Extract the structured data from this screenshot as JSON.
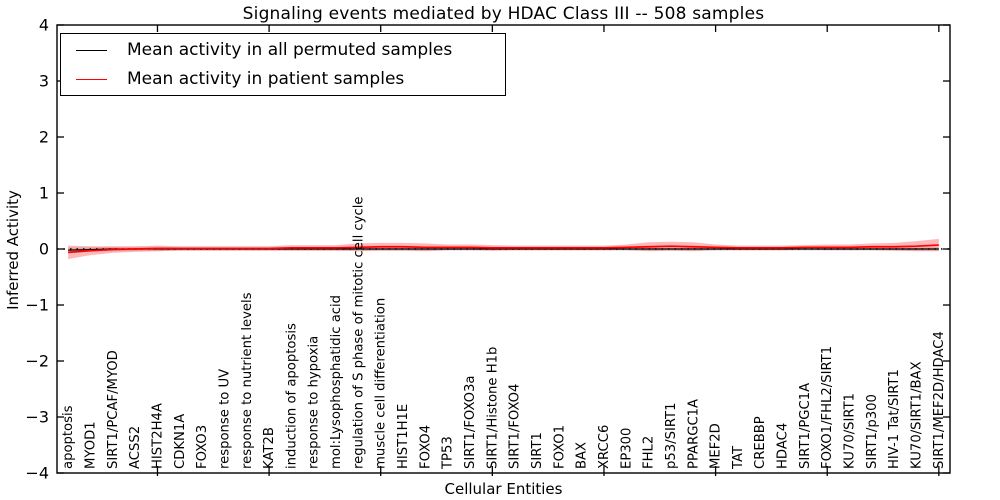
{
  "title": "Signaling events mediated by HDAC Class III -- 508 samples",
  "legend": {
    "items": [
      {
        "label": "Mean activity in all permuted samples",
        "color": "#000000"
      },
      {
        "label": "Mean activity in patient samples",
        "color": "#ff0000"
      }
    ]
  },
  "chart_data": {
    "type": "line",
    "title": "Signaling events mediated by HDAC Class III -- 508 samples",
    "xlabel": "Cellular Entities",
    "ylabel": "Inferred Activity",
    "ylim": [
      -4,
      4
    ],
    "ytick_values": [
      4,
      3,
      2,
      1,
      0,
      -1,
      -2,
      -3,
      -4
    ],
    "ytick_labels": [
      "4",
      "3",
      "2",
      "1",
      "0",
      "−1",
      "−2",
      "−3",
      "−4"
    ],
    "x_major_tick_indices": [
      4,
      9,
      14,
      19,
      24,
      29,
      34,
      39
    ],
    "zero_line": {
      "value": 0,
      "style": "dotted",
      "color": "#000000"
    },
    "grid": false,
    "legend_position": "upper left",
    "categories": [
      "apoptosis",
      "MYOD1",
      "SIRT1/PCAF/MYOD",
      "ACSS2",
      "HIST2H4A",
      "CDKN1A",
      "FOXO3",
      "response to UV",
      "response to nutrient levels",
      "KAT2B",
      "induction of apoptosis",
      "response to hypoxia",
      "mol:Lysophosphatidic acid",
      "regulation of S phase of mitotic cell cycle",
      "muscle cell differentiation",
      "HIST1H1E",
      "FOXO4",
      "TP53",
      "SIRT1/FOXO3a",
      "SIRT1/Histone H1b",
      "SIRT1/FOXO4",
      "SIRT1",
      "FOXO1",
      "BAX",
      "XRCC6",
      "EP300",
      "FHL2",
      "p53/SIRT1",
      "PPARGC1A",
      "MEF2D",
      "TAT",
      "CREBBP",
      "HDAC4",
      "SIRT1/PGC1A",
      "FOXO1/FHL2/SIRT1",
      "KU70/SIRT1",
      "SIRT1/p300",
      "HIV-1 Tat/SIRT1",
      "KU70/SIRT1/BAX",
      "SIRT1/MEF2D/HDAC4"
    ],
    "series": [
      {
        "name": "Mean activity in all permuted samples",
        "color": "#000000",
        "band_opacity": 0.12,
        "values": [
          -0.02,
          -0.01,
          0,
          0,
          0,
          0,
          0,
          0,
          0,
          0,
          0,
          0,
          0,
          0,
          0,
          0,
          0,
          0,
          0,
          0,
          0,
          0,
          0,
          0,
          0,
          0,
          0,
          0,
          0,
          0,
          0,
          0,
          0,
          0,
          0,
          0,
          0,
          0,
          0,
          0
        ],
        "band_half_width": [
          0.05,
          0.04,
          0.04,
          0.04,
          0.04,
          0.03,
          0.03,
          0.03,
          0.03,
          0.03,
          0.03,
          0.03,
          0.03,
          0.03,
          0.03,
          0.03,
          0.03,
          0.03,
          0.03,
          0.03,
          0.03,
          0.03,
          0.03,
          0.03,
          0.03,
          0.03,
          0.03,
          0.03,
          0.03,
          0.03,
          0.03,
          0.03,
          0.03,
          0.03,
          0.03,
          0.03,
          0.03,
          0.03,
          0.03,
          0.03
        ]
      },
      {
        "name": "Mean activity in patient samples",
        "color": "#ff0000",
        "band_opacity": 0.28,
        "values": [
          -0.06,
          -0.03,
          -0.01,
          0.0,
          0.01,
          0.01,
          0.01,
          0.01,
          0.01,
          0.01,
          0.02,
          0.02,
          0.02,
          0.03,
          0.04,
          0.04,
          0.03,
          0.03,
          0.03,
          0.02,
          0.02,
          0.02,
          0.02,
          0.02,
          0.02,
          0.03,
          0.04,
          0.05,
          0.04,
          0.03,
          0.02,
          0.02,
          0.02,
          0.03,
          0.03,
          0.03,
          0.04,
          0.04,
          0.05,
          0.07
        ],
        "band_half_width": [
          0.12,
          0.08,
          0.06,
          0.05,
          0.05,
          0.04,
          0.04,
          0.04,
          0.04,
          0.04,
          0.05,
          0.05,
          0.05,
          0.07,
          0.07,
          0.07,
          0.07,
          0.05,
          0.05,
          0.05,
          0.04,
          0.04,
          0.04,
          0.04,
          0.04,
          0.05,
          0.08,
          0.08,
          0.08,
          0.05,
          0.04,
          0.04,
          0.04,
          0.04,
          0.05,
          0.05,
          0.06,
          0.07,
          0.09,
          0.11
        ]
      }
    ]
  }
}
